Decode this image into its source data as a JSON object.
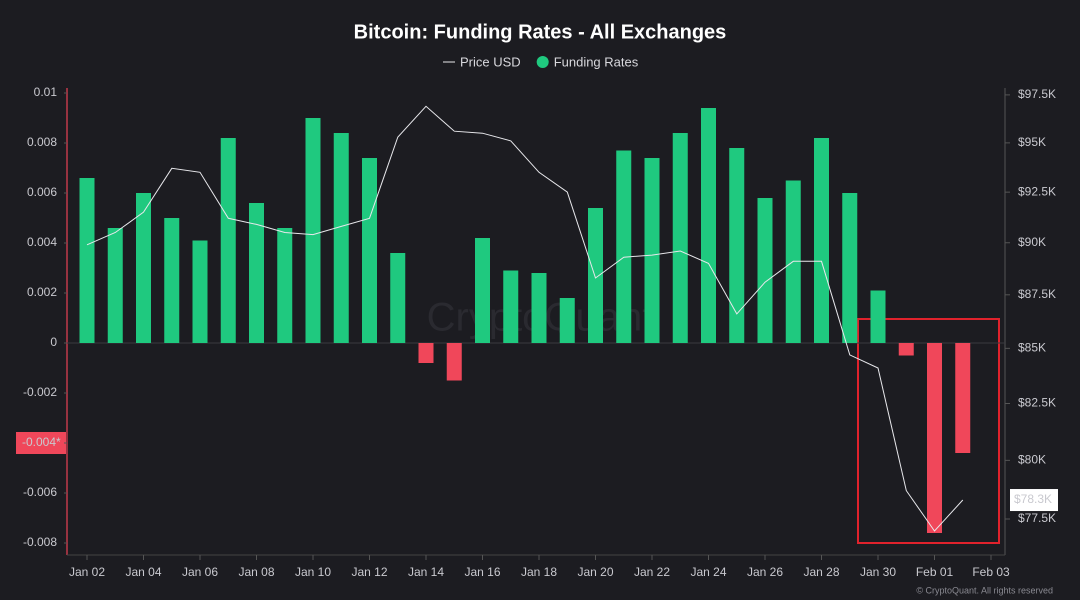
{
  "chart_data": {
    "type": "bar",
    "title": "Bitcoin: Funding Rates - All Exchanges",
    "watermark": "CryptoQuant",
    "footer": "© CryptoQuant. All rights reserved",
    "categories": [
      "Jan 02",
      null,
      "Jan 04",
      null,
      "Jan 06",
      null,
      "Jan 08",
      null,
      "Jan 10",
      null,
      "Jan 12",
      null,
      "Jan 14",
      null,
      "Jan 16",
      null,
      "Jan 18",
      null,
      "Jan 20",
      null,
      "Jan 22",
      null,
      "Jan 24",
      null,
      "Jan 26",
      null,
      "Jan 28",
      null,
      "Jan 30",
      null,
      "Feb 01",
      null,
      "Feb 03"
    ],
    "series": [
      {
        "name": "Price USD",
        "type": "line",
        "axis": "y2",
        "color": "#e8e8ec",
        "values": [
          89.9,
          90.5,
          91.5,
          93.7,
          93.5,
          91.2,
          90.9,
          90.5,
          90.4,
          90.8,
          91.2,
          95.3,
          96.9,
          95.6,
          95.5,
          95.1,
          93.5,
          92.5,
          88.3,
          89.3,
          89.4,
          89.6,
          89.0,
          86.6,
          88.1,
          89.1,
          89.1,
          84.7,
          84.1,
          78.7,
          77.0,
          78.3,
          null
        ]
      },
      {
        "name": "Funding Rates",
        "type": "bar",
        "color": "#1fc97f",
        "negative_color": "#f0475a",
        "values": [
          0.0066,
          0.0046,
          0.006,
          0.005,
          0.0041,
          0.0082,
          0.0056,
          0.0046,
          0.009,
          0.0084,
          0.0074,
          0.0036,
          -0.0008,
          -0.0015,
          0.0042,
          0.0029,
          0.0028,
          0.0018,
          0.0054,
          0.0077,
          0.0074,
          0.0084,
          0.0094,
          0.0078,
          0.0058,
          0.0065,
          0.0082,
          0.006,
          0.0021,
          -0.0005,
          -0.0076,
          -0.0044,
          null
        ]
      }
    ],
    "ylim": [
      -0.008,
      0.01
    ],
    "yticks": [
      0.01,
      0.008,
      0.006,
      0.004,
      0.002,
      0,
      -0.002,
      {
        "value": -0.004,
        "label": "-0.004*"
      },
      -0.006,
      -0.008
    ],
    "y2lim": [
      76.5,
      97.6
    ],
    "y2log": true,
    "y2ticks": [
      {
        "value": 97.5,
        "label": "$97.5K"
      },
      {
        "value": 95,
        "label": "$95K"
      },
      {
        "value": 92.5,
        "label": "$92.5K"
      },
      {
        "value": 90,
        "label": "$90K"
      },
      {
        "value": 87.5,
        "label": "$87.5K"
      },
      {
        "value": 85,
        "label": "$85K"
      },
      {
        "value": 82.5,
        "label": "$82.5K"
      },
      {
        "value": 80,
        "label": "$80K"
      },
      {
        "value": 77.5,
        "label": "$77.5K"
      }
    ],
    "last_value_label": "$78.3K",
    "crosshair_color": "#f0475a",
    "grid": false
  }
}
